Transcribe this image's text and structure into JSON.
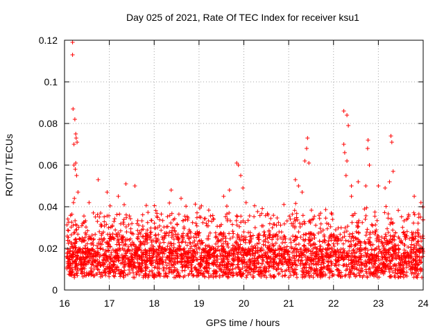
{
  "chart_data": {
    "type": "scatter",
    "title": "Day 025 of 2021, Rate Of TEC Index for receiver ksu1",
    "xlabel": "GPS time / hours",
    "ylabel": "ROTI / TECUs",
    "xlim": [
      16,
      24
    ],
    "ylim": [
      0,
      0.12
    ],
    "xticks": [
      "16",
      "17",
      "18",
      "19",
      "20",
      "21",
      "22",
      "23",
      "24"
    ],
    "xtick_values": [
      16,
      17,
      18,
      19,
      20,
      21,
      22,
      23,
      24
    ],
    "yticks": [
      "0",
      "0.02",
      "0.04",
      "0.06",
      "0.08",
      "0.1",
      "0.12"
    ],
    "ytick_values": [
      0,
      0.02,
      0.04,
      0.06,
      0.08,
      0.1,
      0.12
    ],
    "grid": true,
    "marker": "+",
    "series_color": "#ff0000",
    "series": [
      {
        "name": "ROTI",
        "points": [
          [
            16.18,
            0.119
          ],
          [
            16.18,
            0.113
          ],
          [
            16.19,
            0.087
          ],
          [
            16.21,
            0.07
          ],
          [
            16.23,
            0.082
          ],
          [
            16.25,
            0.075
          ],
          [
            16.26,
            0.073
          ],
          [
            16.28,
            0.071
          ],
          [
            16.21,
            0.06
          ],
          [
            16.25,
            0.061
          ],
          [
            16.27,
            0.055
          ],
          [
            16.24,
            0.058
          ],
          [
            16.22,
            0.044
          ],
          [
            16.2,
            0.042
          ],
          [
            16.3,
            0.047
          ],
          [
            16.75,
            0.053
          ],
          [
            17.37,
            0.051
          ],
          [
            17.57,
            0.05
          ],
          [
            18.38,
            0.048
          ],
          [
            17.2,
            0.045
          ],
          [
            16.95,
            0.047
          ],
          [
            18.6,
            0.044
          ],
          [
            19.84,
            0.061
          ],
          [
            19.88,
            0.06
          ],
          [
            19.93,
            0.055
          ],
          [
            19.98,
            0.049
          ],
          [
            19.68,
            0.048
          ],
          [
            19.55,
            0.045
          ],
          [
            20.05,
            0.042
          ],
          [
            21.42,
            0.073
          ],
          [
            21.4,
            0.068
          ],
          [
            21.36,
            0.062
          ],
          [
            21.45,
            0.061
          ],
          [
            21.15,
            0.053
          ],
          [
            21.22,
            0.05
          ],
          [
            21.3,
            0.047
          ],
          [
            22.23,
            0.086
          ],
          [
            22.3,
            0.084
          ],
          [
            22.33,
            0.079
          ],
          [
            22.23,
            0.07
          ],
          [
            22.25,
            0.066
          ],
          [
            22.3,
            0.062
          ],
          [
            22.28,
            0.055
          ],
          [
            22.4,
            0.05
          ],
          [
            22.55,
            0.052
          ],
          [
            22.4,
            0.045
          ],
          [
            22.77,
            0.072
          ],
          [
            22.76,
            0.068
          ],
          [
            22.8,
            0.06
          ],
          [
            22.72,
            0.05
          ],
          [
            23.28,
            0.074
          ],
          [
            23.3,
            0.071
          ],
          [
            23.33,
            0.057
          ],
          [
            23.25,
            0.052
          ],
          [
            23.0,
            0.05
          ],
          [
            23.15,
            0.049
          ],
          [
            23.8,
            0.045
          ],
          [
            23.95,
            0.042
          ]
        ]
      }
    ]
  }
}
